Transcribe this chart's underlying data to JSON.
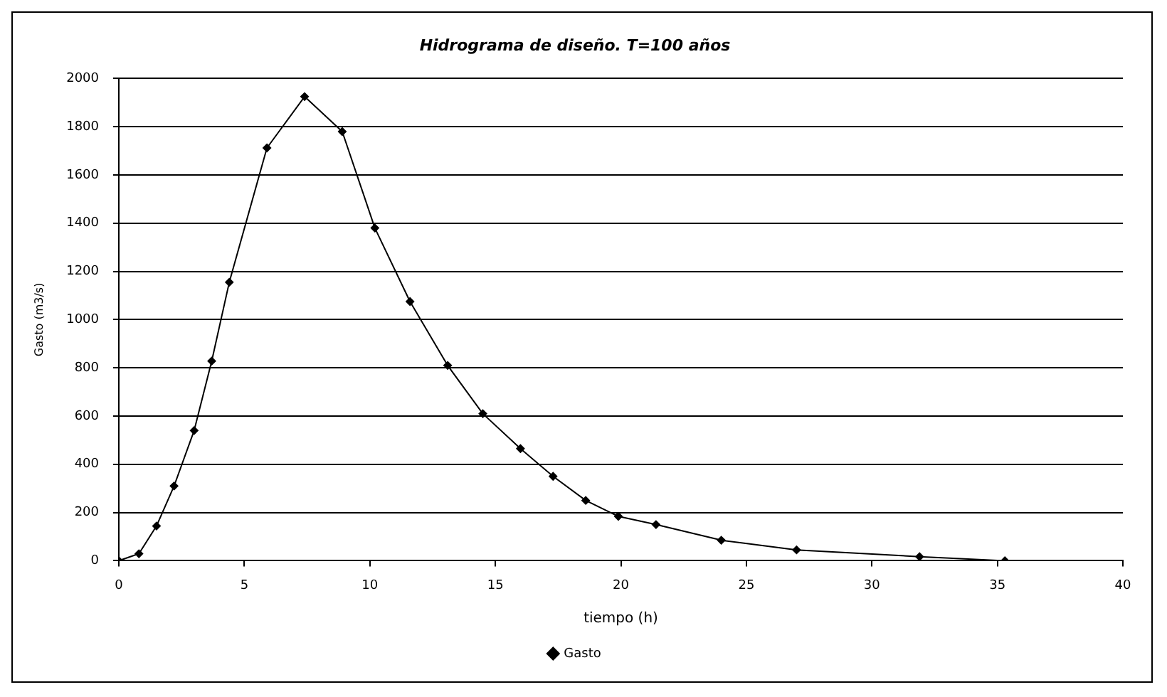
{
  "chart_data": {
    "type": "line",
    "title": "Hidrograma de diseño. T=100 años",
    "xlabel": "tiempo (h)",
    "ylabel": "Gasto (m3/s)",
    "series": [
      {
        "name": "Gasto",
        "color": "#000000",
        "x": [
          0,
          0.8,
          1.5,
          2.2,
          3.0,
          3.7,
          4.4,
          5.9,
          7.4,
          8.9,
          10.2,
          11.6,
          13.1,
          14.5,
          16.0,
          17.3,
          18.6,
          19.9,
          21.4,
          24.0,
          27.0,
          31.9,
          35.3
        ],
        "values": [
          0,
          29,
          144,
          310,
          540,
          828,
          1155,
          1712,
          1925,
          1780,
          1380,
          1075,
          810,
          610,
          465,
          350,
          250,
          184,
          150,
          85,
          45,
          17,
          0
        ]
      }
    ],
    "xlim": [
      0,
      40
    ],
    "xticks": [
      0,
      5,
      10,
      15,
      20,
      25,
      30,
      35,
      40
    ],
    "ylim": [
      0,
      2000
    ],
    "yticks": [
      0,
      200,
      400,
      600,
      800,
      1000,
      1200,
      1400,
      1600,
      1800,
      2000
    ],
    "grid": "y",
    "legend": "bottom",
    "marker": "diamond",
    "line_style": "solid"
  }
}
